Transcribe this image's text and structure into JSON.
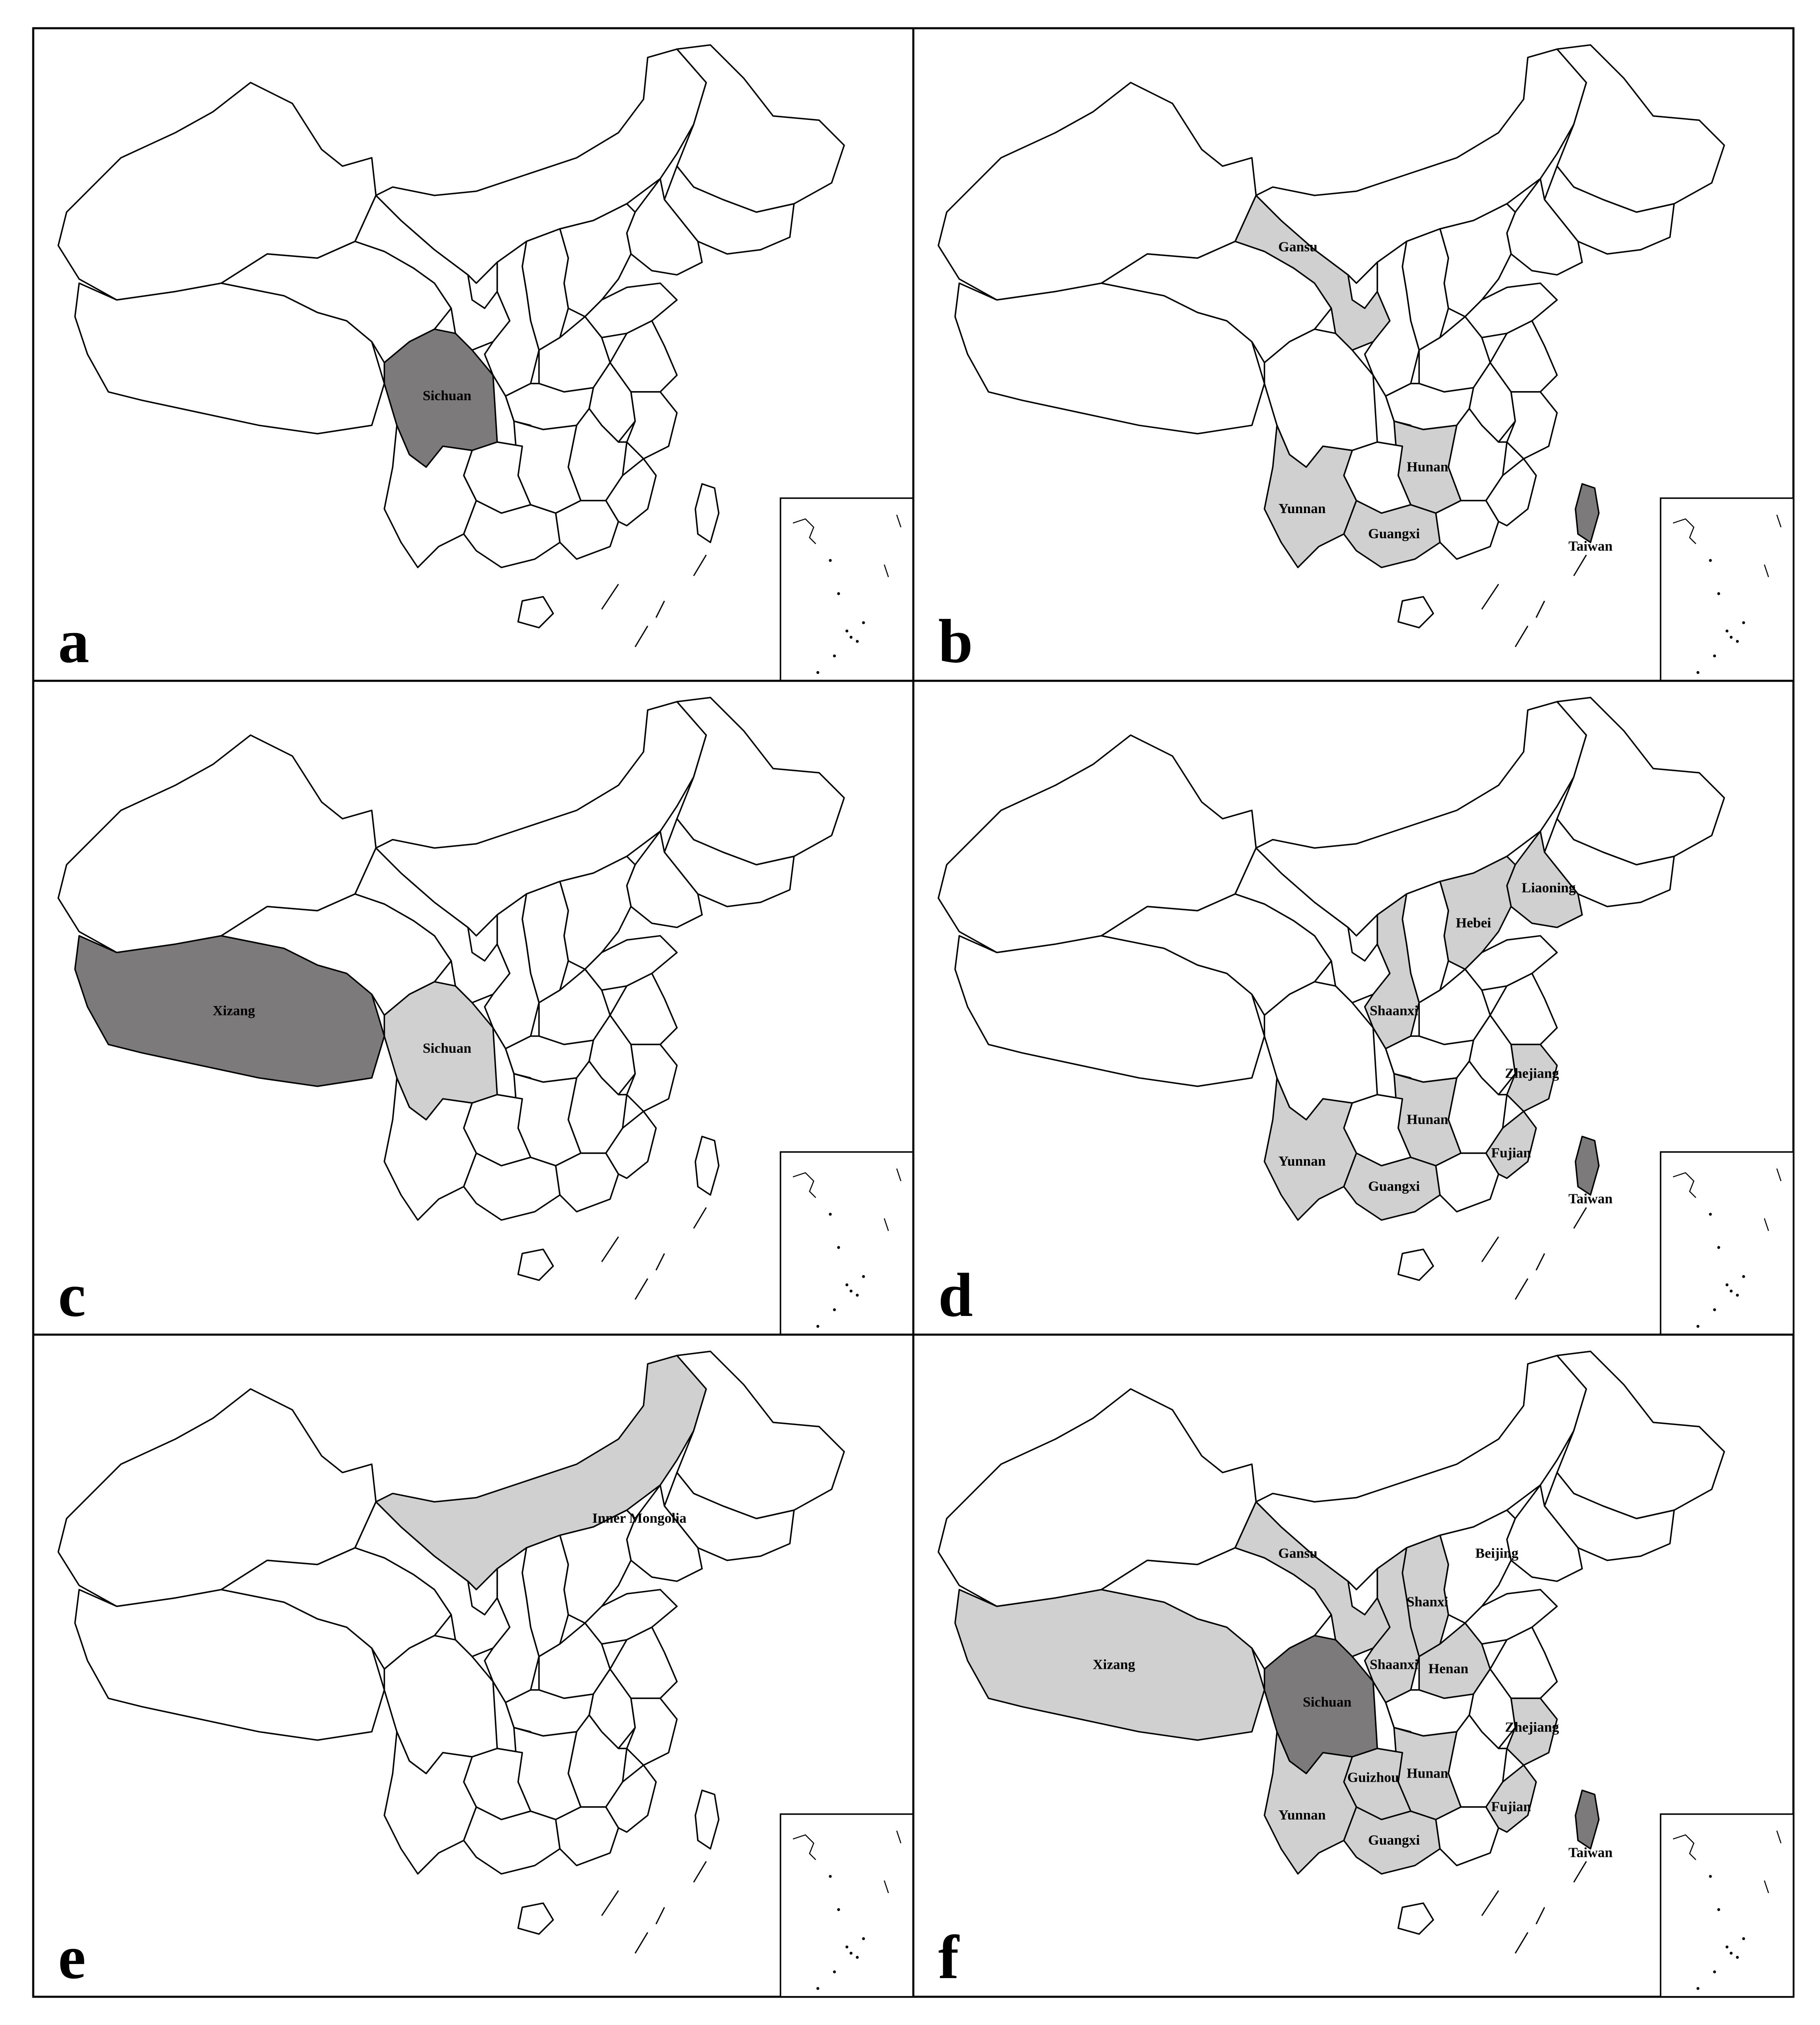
{
  "figure": {
    "panels": [
      {
        "letter": "a",
        "dark_label": "Sichuan",
        "light_label": "",
        "labels": [
          {
            "text": "Sichuan",
            "shade": "dark",
            "region": "sichuan"
          }
        ]
      },
      {
        "letter": "b",
        "labels": [
          {
            "text": "Gansu",
            "shade": "light",
            "region": "gansu"
          },
          {
            "text": "Hunan",
            "shade": "light",
            "region": "hunan"
          },
          {
            "text": "Yunnan",
            "shade": "light",
            "region": "yunnan"
          },
          {
            "text": "Guangxi",
            "shade": "light",
            "region": "guangxi"
          },
          {
            "text": "Taiwan",
            "shade": "dark",
            "region": "taiwan"
          }
        ]
      },
      {
        "letter": "c",
        "labels": [
          {
            "text": "Xizang",
            "shade": "dark",
            "region": "xizang"
          },
          {
            "text": "Sichuan",
            "shade": "light",
            "region": "sichuan"
          }
        ]
      },
      {
        "letter": "d",
        "labels": [
          {
            "text": "Liaoning",
            "shade": "light",
            "region": "liaoning"
          },
          {
            "text": "Hebei",
            "shade": "light",
            "region": "hebei"
          },
          {
            "text": "Shaanxi",
            "shade": "light",
            "region": "shaanxi"
          },
          {
            "text": "Hunan",
            "shade": "light",
            "region": "hunan"
          },
          {
            "text": "Zhejiang",
            "shade": "light",
            "region": "zhejiang"
          },
          {
            "text": "Yunnan",
            "shade": "light",
            "region": "yunnan"
          },
          {
            "text": "Guangxi",
            "shade": "light",
            "region": "guangxi"
          },
          {
            "text": "Fujian",
            "shade": "light",
            "region": "fujian"
          },
          {
            "text": "Taiwan",
            "shade": "dark",
            "region": "taiwan"
          }
        ]
      },
      {
        "letter": "e",
        "labels": [
          {
            "text": "Inner Mongolia",
            "shade": "light",
            "region": "inner_mongolia"
          }
        ]
      },
      {
        "letter": "f",
        "labels": [
          {
            "text": "Gansu",
            "shade": "light",
            "region": "gansu"
          },
          {
            "text": "Beijing",
            "shade": "light",
            "region": "beijing"
          },
          {
            "text": "Shanxi",
            "shade": "light",
            "region": "shanxi"
          },
          {
            "text": "Shaanxi",
            "shade": "light",
            "region": "shaanxi"
          },
          {
            "text": "Henan",
            "shade": "light",
            "region": "henan"
          },
          {
            "text": "Xizang",
            "shade": "light",
            "region": "xizang"
          },
          {
            "text": "Sichuan",
            "shade": "dark",
            "region": "sichuan"
          },
          {
            "text": "Zhejiang",
            "shade": "light",
            "region": "zhejiang"
          },
          {
            "text": "Guizhou",
            "shade": "light",
            "region": "guizhou"
          },
          {
            "text": "Hunan",
            "shade": "light",
            "region": "hunan"
          },
          {
            "text": "Fujian",
            "shade": "light",
            "region": "fujian"
          },
          {
            "text": "Yunnan",
            "shade": "light",
            "region": "yunnan"
          },
          {
            "text": "Guangxi",
            "shade": "light",
            "region": "guangxi"
          },
          {
            "text": "Taiwan",
            "shade": "dark",
            "region": "taiwan"
          }
        ]
      }
    ],
    "colors": {
      "dark": "#7d7a7b",
      "light": "#d0d0d0",
      "none": "#ffffff",
      "border": "#000000"
    }
  }
}
